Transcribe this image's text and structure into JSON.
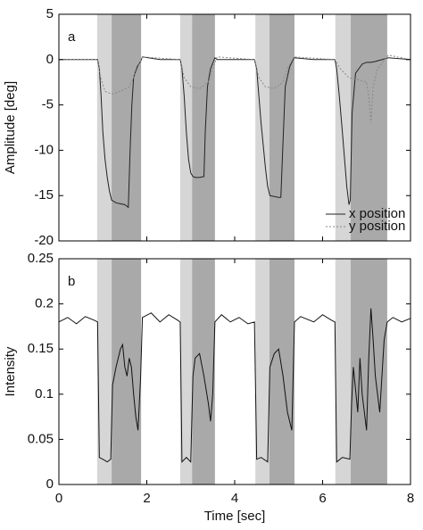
{
  "chart_data": [
    {
      "type": "line",
      "panel_label": "a",
      "ylabel": "Amplitude [deg]",
      "xlim": [
        0,
        8
      ],
      "xticks": [
        0,
        2,
        4,
        6,
        8
      ],
      "show_xtick_labels": false,
      "ylim": [
        -20,
        5
      ],
      "yticks": [
        -20,
        -15,
        -10,
        -5,
        0,
        5
      ],
      "legend": "lower right",
      "shaded_regions": [
        {
          "x": [
            0.87,
            1.2
          ],
          "color": "#d6d6d6"
        },
        {
          "x": [
            1.2,
            1.87
          ],
          "color": "#a9a9a9"
        },
        {
          "x": [
            2.76,
            3.03
          ],
          "color": "#d6d6d6"
        },
        {
          "x": [
            3.03,
            3.55
          ],
          "color": "#a9a9a9"
        },
        {
          "x": [
            4.47,
            4.79
          ],
          "color": "#d6d6d6"
        },
        {
          "x": [
            4.79,
            5.36
          ],
          "color": "#a9a9a9"
        },
        {
          "x": [
            6.29,
            6.64
          ],
          "color": "#d6d6d6"
        },
        {
          "x": [
            6.64,
            7.47
          ],
          "color": "#a9a9a9"
        }
      ],
      "series": [
        {
          "name": "x position",
          "color": "#222222",
          "dash": "solid",
          "x": [
            0,
            0.5,
            0.88,
            0.92,
            0.96,
            1.0,
            1.05,
            1.1,
            1.15,
            1.2,
            1.3,
            1.4,
            1.5,
            1.58,
            1.62,
            1.66,
            1.7,
            1.78,
            1.86,
            1.9,
            2.3,
            2.76,
            2.8,
            2.85,
            2.9,
            2.95,
            3.0,
            3.05,
            3.1,
            3.2,
            3.3,
            3.33,
            3.38,
            3.45,
            3.55,
            3.6,
            4.0,
            4.45,
            4.5,
            4.55,
            4.6,
            4.7,
            4.75,
            4.8,
            5.0,
            5.05,
            5.1,
            5.15,
            5.25,
            5.35,
            5.8,
            6.28,
            6.32,
            6.38,
            6.45,
            6.5,
            6.55,
            6.6,
            6.63,
            6.67,
            6.75,
            6.9,
            7.0,
            7.1,
            7.2,
            7.5,
            8.0
          ],
          "values": [
            0,
            0,
            0,
            -1,
            -4,
            -8,
            -11,
            -13,
            -14.5,
            -15.5,
            -15.8,
            -15.9,
            -16,
            -16.3,
            -10,
            -5,
            -2,
            -0.8,
            -0.2,
            0.3,
            0,
            0,
            -1,
            -4,
            -8,
            -11,
            -12.5,
            -12.9,
            -13,
            -13,
            -12.9,
            -8,
            -3,
            -1,
            0.2,
            0,
            0,
            0,
            -1,
            -4,
            -7,
            -12,
            -14,
            -15,
            -15.2,
            -15.2,
            -9,
            -3,
            -0.8,
            0.2,
            0,
            0,
            -1,
            -4,
            -8,
            -11,
            -14,
            -16,
            -15.5,
            -6,
            -1.5,
            -0.5,
            -0.3,
            -0.3,
            -0.2,
            0.2,
            0
          ]
        },
        {
          "name": "y position",
          "color": "#888888",
          "dash": "dotted",
          "x": [
            0,
            0.88,
            0.95,
            1.05,
            1.2,
            1.4,
            1.6,
            1.7,
            1.8,
            1.9,
            2.76,
            2.85,
            3.0,
            3.2,
            3.4,
            3.5,
            3.6,
            4.45,
            4.55,
            4.7,
            4.9,
            5.1,
            5.2,
            5.35,
            6.28,
            6.4,
            6.6,
            6.8,
            7.0,
            7.05,
            7.1,
            7.15,
            7.25,
            7.5,
            8.0
          ],
          "values": [
            0,
            0,
            -2,
            -3.5,
            -3.8,
            -3.5,
            -3,
            -2,
            -0.8,
            0.3,
            0,
            -2,
            -3,
            -3.2,
            -2.5,
            -1,
            0.3,
            0,
            -2,
            -3,
            -3.2,
            -2.5,
            -1,
            0.3,
            0,
            -1,
            -2,
            -2.2,
            -2.5,
            -4,
            -7,
            -3,
            -1,
            0.5,
            0
          ]
        }
      ]
    },
    {
      "type": "line",
      "panel_label": "b",
      "ylabel": "Intensity",
      "xlabel": "Time [sec]",
      "xlim": [
        0,
        8
      ],
      "xticks": [
        0,
        2,
        4,
        6,
        8
      ],
      "show_xtick_labels": true,
      "ylim": [
        0,
        0.25
      ],
      "yticks": [
        0,
        0.05,
        0.1,
        0.15,
        0.2,
        0.25
      ],
      "shaded_regions": [
        {
          "x": [
            0.87,
            1.2
          ],
          "color": "#d6d6d6"
        },
        {
          "x": [
            1.2,
            1.87
          ],
          "color": "#a9a9a9"
        },
        {
          "x": [
            2.76,
            3.03
          ],
          "color": "#d6d6d6"
        },
        {
          "x": [
            3.03,
            3.55
          ],
          "color": "#a9a9a9"
        },
        {
          "x": [
            4.47,
            4.79
          ],
          "color": "#d6d6d6"
        },
        {
          "x": [
            4.79,
            5.36
          ],
          "color": "#a9a9a9"
        },
        {
          "x": [
            6.29,
            6.64
          ],
          "color": "#d6d6d6"
        },
        {
          "x": [
            6.64,
            7.47
          ],
          "color": "#a9a9a9"
        }
      ],
      "series": [
        {
          "name": "intensity",
          "color": "#111111",
          "dash": "solid",
          "x": [
            0,
            0.2,
            0.4,
            0.6,
            0.8,
            0.88,
            0.92,
            1.0,
            1.1,
            1.18,
            1.22,
            1.3,
            1.4,
            1.45,
            1.5,
            1.55,
            1.6,
            1.65,
            1.7,
            1.75,
            1.8,
            1.86,
            1.9,
            2.1,
            2.3,
            2.5,
            2.7,
            2.76,
            2.8,
            2.9,
            3.0,
            3.05,
            3.1,
            3.2,
            3.3,
            3.4,
            3.45,
            3.5,
            3.55,
            3.7,
            3.9,
            4.1,
            4.3,
            4.45,
            4.5,
            4.6,
            4.75,
            4.8,
            4.9,
            5.0,
            5.1,
            5.2,
            5.3,
            5.36,
            5.5,
            5.8,
            6.0,
            6.2,
            6.28,
            6.32,
            6.45,
            6.62,
            6.66,
            6.7,
            6.8,
            6.85,
            6.9,
            7.0,
            7.05,
            7.1,
            7.15,
            7.2,
            7.3,
            7.4,
            7.47,
            7.6,
            7.8,
            8.0
          ],
          "values": [
            0.18,
            0.185,
            0.178,
            0.186,
            0.182,
            0.18,
            0.03,
            0.028,
            0.025,
            0.028,
            0.11,
            0.13,
            0.15,
            0.155,
            0.13,
            0.12,
            0.14,
            0.13,
            0.1,
            0.075,
            0.06,
            0.12,
            0.185,
            0.19,
            0.18,
            0.188,
            0.182,
            0.18,
            0.025,
            0.03,
            0.025,
            0.12,
            0.14,
            0.145,
            0.12,
            0.09,
            0.07,
            0.1,
            0.18,
            0.188,
            0.18,
            0.185,
            0.178,
            0.18,
            0.028,
            0.03,
            0.025,
            0.13,
            0.145,
            0.15,
            0.12,
            0.08,
            0.06,
            0.18,
            0.186,
            0.18,
            0.188,
            0.182,
            0.18,
            0.025,
            0.03,
            0.028,
            0.09,
            0.13,
            0.08,
            0.14,
            0.1,
            0.06,
            0.14,
            0.195,
            0.16,
            0.12,
            0.08,
            0.16,
            0.18,
            0.185,
            0.18,
            0.184
          ]
        }
      ]
    }
  ]
}
